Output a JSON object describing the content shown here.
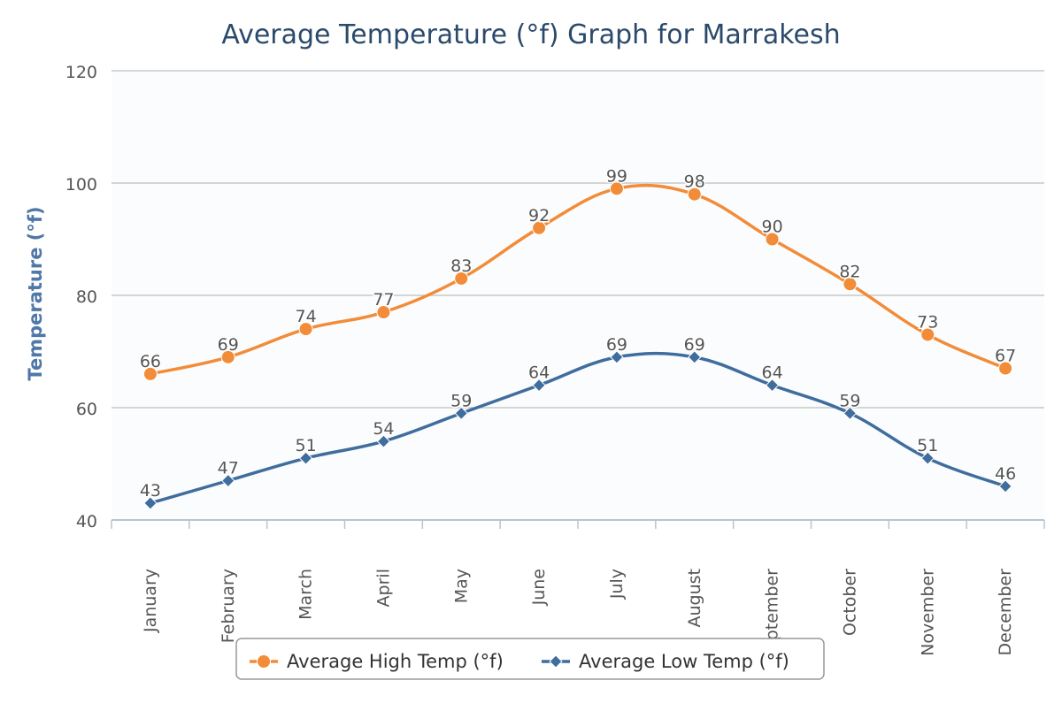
{
  "chart_data": {
    "type": "line",
    "title": "Average Temperature (°f) Graph for Marrakesh",
    "xlabel": "",
    "ylabel": "Temperature (°f)",
    "ylim": [
      40,
      120
    ],
    "yticks": [
      40,
      60,
      80,
      100,
      120
    ],
    "grid": true,
    "legend_position": "bottom-center",
    "categories": [
      "January",
      "February",
      "March",
      "April",
      "May",
      "June",
      "July",
      "August",
      "September",
      "October",
      "November",
      "December"
    ],
    "series": [
      {
        "name": "Average High Temp (°f)",
        "key": "high",
        "color": "#f28c38",
        "marker": "circle",
        "values": [
          66,
          69,
          74,
          77,
          83,
          92,
          99,
          98,
          90,
          82,
          73,
          67
        ]
      },
      {
        "name": "Average Low Temp (°f)",
        "key": "low",
        "color": "#3f6d9e",
        "marker": "diamond",
        "values": [
          43,
          47,
          51,
          54,
          59,
          64,
          69,
          69,
          64,
          59,
          51,
          46
        ]
      }
    ]
  },
  "colors": {
    "title": "#2b4a6b",
    "axis_title": "#4f77a8",
    "tick_label": "#555555",
    "grid": "#c8c8c8",
    "plot_background": "#fbfcfd",
    "legend_border": "#999999"
  }
}
